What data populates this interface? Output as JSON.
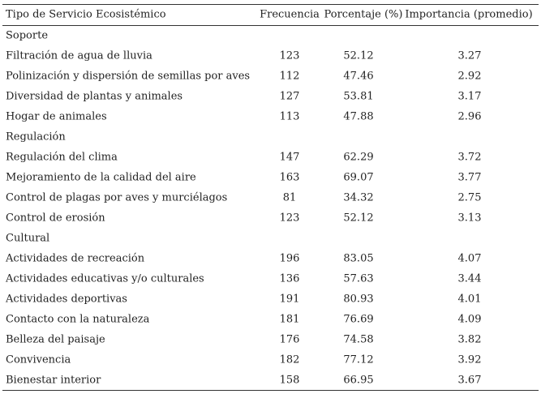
{
  "table": {
    "header": [
      "Tipo de Servicio Ecosistémico",
      "Frecuencia",
      "Porcentaje (%)",
      "Importancia (promedio)"
    ],
    "groups": [
      {
        "name": "Soporte",
        "rows": [
          [
            "Filtración de agua de lluvia",
            123,
            52.12,
            3.27
          ],
          [
            "Polinización y dispersión de semillas por aves",
            112,
            47.46,
            2.92
          ],
          [
            "Diversidad de plantas y animales",
            127,
            53.81,
            3.17
          ],
          [
            "Hogar de animales",
            113,
            47.88,
            2.96
          ]
        ]
      },
      {
        "name": "Regulación",
        "rows": [
          [
            "Regulación del clima",
            147,
            62.29,
            3.72
          ],
          [
            "Mejoramiento de la calidad del aire",
            163,
            69.07,
            3.77
          ],
          [
            "Control de plagas por aves y murciélagos",
            81,
            34.32,
            2.75
          ],
          [
            "Control de erosión",
            123,
            52.12,
            3.13
          ]
        ]
      },
      {
        "name": "Cultural",
        "rows": [
          [
            "Actividades de recreación",
            196,
            83.05,
            4.07
          ],
          [
            "Actividades educativas y/o culturales",
            136,
            57.63,
            3.44
          ],
          [
            "Actividades deportivas",
            191,
            80.93,
            4.01
          ],
          [
            "Contacto con la naturaleza",
            181,
            76.69,
            4.09
          ],
          [
            "Belleza del paisaje",
            176,
            74.58,
            3.82
          ],
          [
            "Convivencia",
            182,
            77.12,
            3.92
          ],
          [
            "Bienestar interior",
            158,
            66.95,
            3.67
          ]
        ]
      }
    ]
  }
}
